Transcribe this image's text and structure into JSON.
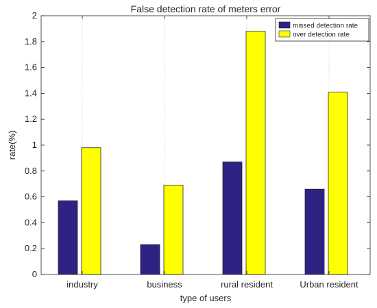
{
  "chart_data": {
    "type": "bar",
    "title": "False detection rate of meters error",
    "xlabel": "type of users",
    "ylabel": "rate(%)",
    "categories": [
      "industry",
      "business",
      "rural resident",
      "Urban resident"
    ],
    "series": [
      {
        "name": "missed detection rate",
        "values": [
          0.57,
          0.23,
          0.87,
          0.66
        ],
        "color": "#2e2385"
      },
      {
        "name": "over detection rate",
        "values": [
          0.98,
          0.69,
          1.88,
          1.41
        ],
        "color": "#ffff00"
      }
    ],
    "ylim": [
      0,
      2
    ],
    "yticks": [
      "0",
      "0.2",
      "0.4",
      "0.6",
      "0.8",
      "1",
      "1.2",
      "1.4",
      "1.6",
      "1.8",
      "2"
    ],
    "grid": "x-only dotted",
    "legend": "top-right"
  }
}
